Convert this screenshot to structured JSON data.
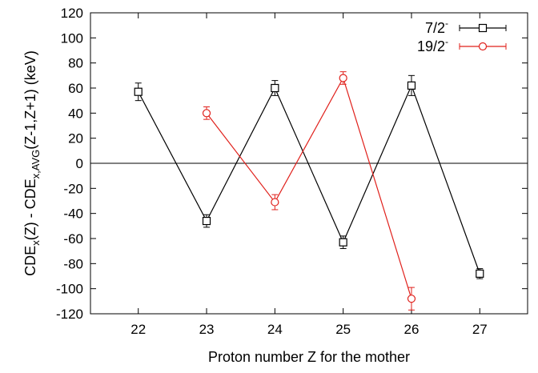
{
  "chart_data": {
    "type": "line",
    "xlabel": "Proton number Z for the mother",
    "ylabel": {
      "parts": [
        {
          "text": "CDE",
          "sub": false
        },
        {
          "text": "x",
          "sub": true
        },
        {
          "text": "(Z) - CDE",
          "sub": false
        },
        {
          "text": "x,AVG",
          "sub": true
        },
        {
          "text": "(Z-1,Z+1) (keV)",
          "sub": false
        }
      ]
    },
    "xlim": [
      21.3,
      27.7
    ],
    "ylim": [
      -120,
      120
    ],
    "xticks": [
      22,
      23,
      24,
      25,
      26,
      27
    ],
    "yticks": [
      -120,
      -100,
      -80,
      -60,
      -40,
      -20,
      0,
      20,
      40,
      60,
      80,
      100,
      120
    ],
    "zero_line": true,
    "legend": "top-right",
    "series": [
      {
        "label_base": "7/2",
        "label_sup": "-",
        "color": "#000000",
        "marker": "square",
        "x": [
          22,
          23,
          24,
          25,
          26,
          27
        ],
        "y": [
          57,
          -46,
          60,
          -63,
          62,
          -88
        ],
        "yerr": [
          7,
          5,
          6,
          5,
          8,
          4
        ]
      },
      {
        "label_base": "19/2",
        "label_sup": "-",
        "color": "#e0201b",
        "marker": "circle",
        "x": [
          23,
          24,
          25,
          26
        ],
        "y": [
          40,
          -31,
          68,
          -108
        ],
        "yerr": [
          5,
          6,
          5,
          9
        ]
      }
    ]
  }
}
